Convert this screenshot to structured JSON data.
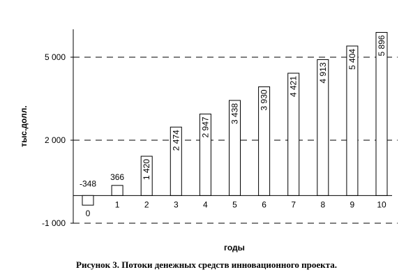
{
  "chart_data": {
    "type": "bar",
    "categories": [
      "0",
      "1",
      "2",
      "3",
      "4",
      "5",
      "6",
      "7",
      "8",
      "9",
      "10"
    ],
    "values": [
      -348,
      366,
      1420,
      2474,
      2947,
      3438,
      3930,
      4421,
      4913,
      5404,
      5896
    ],
    "data_labels": [
      "-348",
      "366",
      "1 420",
      "2 474",
      "2 947",
      "3 438",
      "3 930",
      "4 421",
      "4 913",
      "5 404",
      "5 896"
    ],
    "xlabel": "годы",
    "ylabel": "тыс.долл.",
    "ylim": [
      -1000,
      6000
    ],
    "yticks": [
      -1000,
      2000,
      5000
    ],
    "ytick_labels": [
      "-1 000",
      "2 000",
      "5 000"
    ],
    "grid": "horizontal dashed",
    "bar_color": "#ffffff",
    "edge_color": "#000000"
  },
  "caption": "Рисунок 3.  Потоки денежных средств инновационного проекта."
}
